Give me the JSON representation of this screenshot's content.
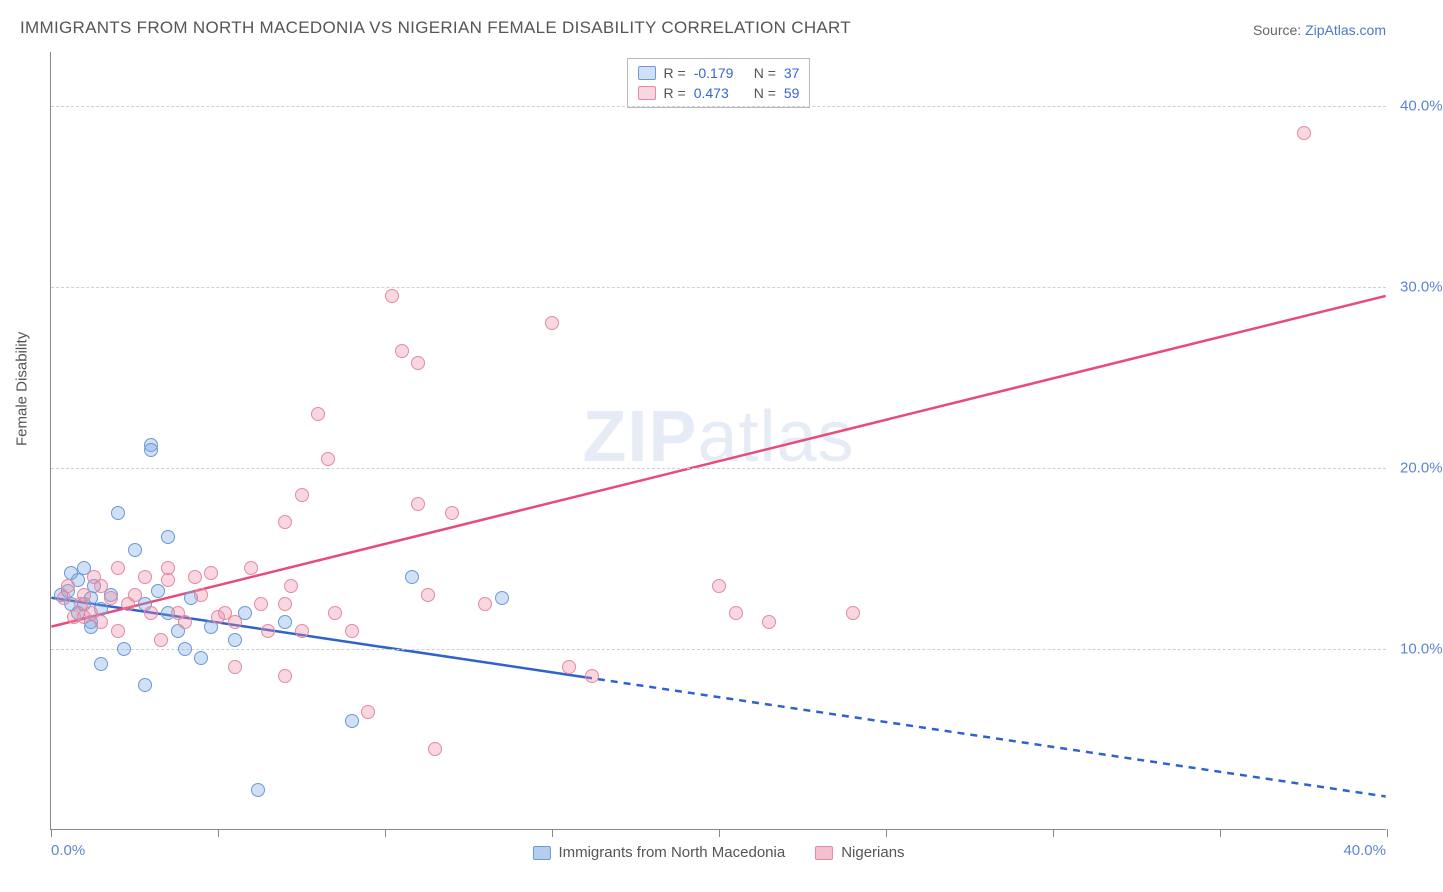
{
  "title": "IMMIGRANTS FROM NORTH MACEDONIA VS NIGERIAN FEMALE DISABILITY CORRELATION CHART",
  "source_label": "Source: ",
  "source_name": "ZipAtlas.com",
  "watermark_a": "ZIP",
  "watermark_b": "atlas",
  "y_axis_title": "Female Disability",
  "chart": {
    "type": "scatter",
    "xlim": [
      0,
      40
    ],
    "ylim": [
      0,
      43
    ],
    "x_tick_positions": [
      0,
      5,
      10,
      15,
      20,
      25,
      30,
      35,
      40
    ],
    "x_tick_labels_shown": {
      "0": "0.0%",
      "40": "40.0%"
    },
    "y_gridlines": [
      10,
      20,
      30,
      40
    ],
    "y_tick_labels": {
      "10": "10.0%",
      "20": "20.0%",
      "30": "30.0%",
      "40": "40.0%"
    },
    "background_color": "#ffffff",
    "grid_color": "#d0d0d0",
    "axis_color": "#888888",
    "marker_radius": 7,
    "marker_stroke_width": 1.5,
    "series": [
      {
        "name": "Immigrants from North Macedonia",
        "fill": "rgba(120,165,225,0.35)",
        "stroke": "#6a9ad8",
        "trend_color": "#2f63c9",
        "trend_solid_x": [
          0,
          16
        ],
        "trend_dash_x": [
          16,
          40
        ],
        "trend_y": [
          12.8,
          1.8
        ],
        "R_label": "R =",
        "R_value": "-0.179",
        "N_label": "N =",
        "N_value": "37",
        "points": [
          [
            0.3,
            13.0
          ],
          [
            0.5,
            13.2
          ],
          [
            0.6,
            12.5
          ],
          [
            0.8,
            12.0
          ],
          [
            0.8,
            13.8
          ],
          [
            1.0,
            12.5
          ],
          [
            1.0,
            14.5
          ],
          [
            1.2,
            11.5
          ],
          [
            1.2,
            12.8
          ],
          [
            1.3,
            13.5
          ],
          [
            1.5,
            12.2
          ],
          [
            1.5,
            9.2
          ],
          [
            1.8,
            13.0
          ],
          [
            2.0,
            17.5
          ],
          [
            2.2,
            10.0
          ],
          [
            2.5,
            15.5
          ],
          [
            2.8,
            12.5
          ],
          [
            2.8,
            8.0
          ],
          [
            3.0,
            21.3
          ],
          [
            3.0,
            21.0
          ],
          [
            3.2,
            13.2
          ],
          [
            3.5,
            12.0
          ],
          [
            3.5,
            16.2
          ],
          [
            3.8,
            11.0
          ],
          [
            4.0,
            10.0
          ],
          [
            4.2,
            12.8
          ],
          [
            4.5,
            9.5
          ],
          [
            4.8,
            11.2
          ],
          [
            5.5,
            10.5
          ],
          [
            5.8,
            12.0
          ],
          [
            6.2,
            2.2
          ],
          [
            7.0,
            11.5
          ],
          [
            9.0,
            6.0
          ],
          [
            10.8,
            14.0
          ],
          [
            13.5,
            12.8
          ],
          [
            0.6,
            14.2
          ],
          [
            1.2,
            11.2
          ]
        ]
      },
      {
        "name": "Nigerians",
        "fill": "rgba(235,140,165,0.35)",
        "stroke": "#e589a2",
        "trend_color": "#e84a7a",
        "trend_solid_x": [
          0,
          40
        ],
        "trend_dash_x": null,
        "trend_y": [
          11.2,
          29.5
        ],
        "R_label": "R =",
        "R_value": "0.473",
        "N_label": "N =",
        "N_value": "59",
        "points": [
          [
            0.4,
            12.8
          ],
          [
            0.5,
            13.5
          ],
          [
            0.7,
            11.8
          ],
          [
            0.9,
            12.5
          ],
          [
            1.0,
            13.0
          ],
          [
            1.2,
            12.0
          ],
          [
            1.3,
            14.0
          ],
          [
            1.5,
            13.5
          ],
          [
            1.5,
            11.5
          ],
          [
            1.8,
            12.8
          ],
          [
            2.0,
            14.5
          ],
          [
            2.0,
            11.0
          ],
          [
            2.3,
            12.5
          ],
          [
            2.5,
            13.0
          ],
          [
            2.8,
            14.0
          ],
          [
            3.0,
            12.0
          ],
          [
            3.3,
            10.5
          ],
          [
            3.5,
            14.5
          ],
          [
            3.8,
            12.0
          ],
          [
            4.0,
            11.5
          ],
          [
            4.3,
            14.0
          ],
          [
            4.5,
            13.0
          ],
          [
            5.0,
            11.8
          ],
          [
            5.2,
            12.0
          ],
          [
            5.5,
            11.5
          ],
          [
            5.5,
            9.0
          ],
          [
            6.0,
            14.5
          ],
          [
            6.3,
            12.5
          ],
          [
            6.5,
            11.0
          ],
          [
            7.0,
            12.5
          ],
          [
            7.0,
            17.0
          ],
          [
            7.2,
            13.5
          ],
          [
            7.5,
            11.0
          ],
          [
            7.5,
            18.5
          ],
          [
            8.0,
            23.0
          ],
          [
            8.3,
            20.5
          ],
          [
            8.5,
            12.0
          ],
          [
            9.0,
            11.0
          ],
          [
            9.5,
            6.5
          ],
          [
            10.2,
            29.5
          ],
          [
            10.5,
            26.5
          ],
          [
            11.0,
            25.8
          ],
          [
            11.0,
            18.0
          ],
          [
            11.3,
            13.0
          ],
          [
            11.5,
            4.5
          ],
          [
            12.0,
            17.5
          ],
          [
            13.0,
            12.5
          ],
          [
            15.0,
            28.0
          ],
          [
            15.5,
            9.0
          ],
          [
            16.2,
            8.5
          ],
          [
            20.0,
            13.5
          ],
          [
            20.5,
            12.0
          ],
          [
            21.5,
            11.5
          ],
          [
            24.0,
            12.0
          ],
          [
            7.0,
            8.5
          ],
          [
            3.5,
            13.8
          ],
          [
            4.8,
            14.2
          ],
          [
            1.0,
            11.8
          ],
          [
            37.5,
            38.5
          ]
        ]
      }
    ]
  },
  "legend_bottom": [
    {
      "swatch_fill": "rgba(120,165,225,0.55)",
      "swatch_stroke": "#6a9ad8",
      "label": "Immigrants from North Macedonia"
    },
    {
      "swatch_fill": "rgba(235,140,165,0.55)",
      "swatch_stroke": "#e589a2",
      "label": "Nigerians"
    }
  ]
}
